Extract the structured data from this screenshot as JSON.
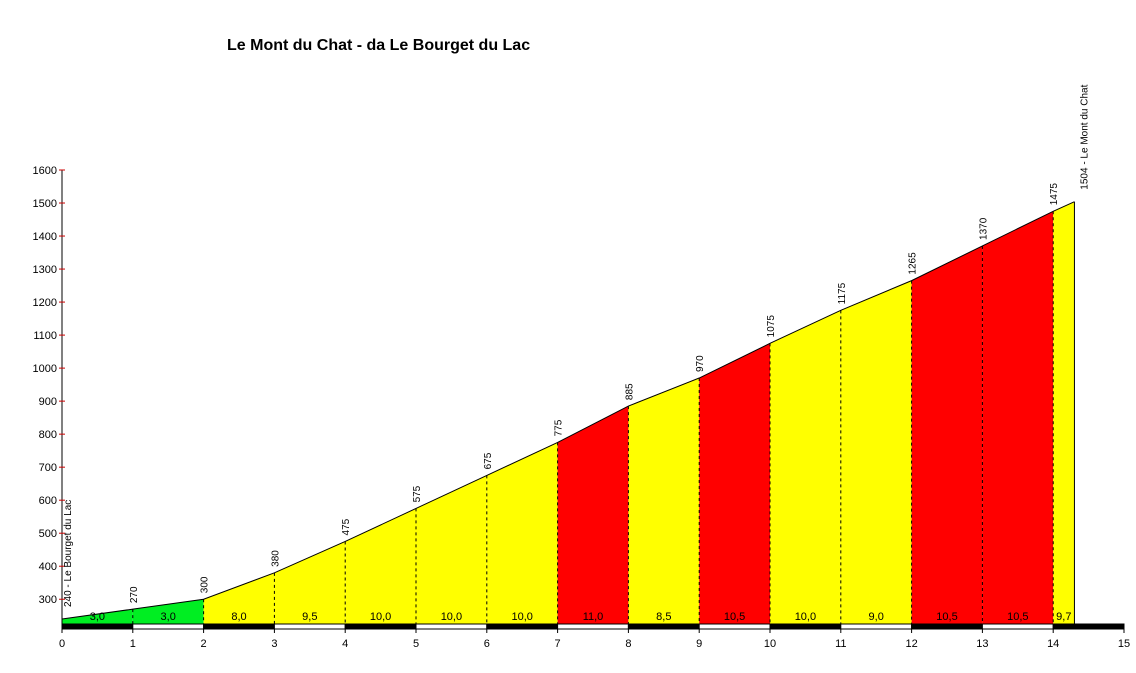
{
  "chart_data": {
    "type": "area",
    "title": "Le Mont du Chat - da Le Bourget du Lac",
    "xlabel": "",
    "ylabel": "",
    "xlim": [
      0,
      15
    ],
    "ylim": [
      225,
      1600
    ],
    "x_ticks": [
      0,
      1,
      2,
      3,
      4,
      5,
      6,
      7,
      8,
      9,
      10,
      11,
      12,
      13,
      14,
      15
    ],
    "y_ticks": [
      300,
      400,
      500,
      600,
      700,
      800,
      900,
      1000,
      1100,
      1200,
      1300,
      1400,
      1500,
      1600
    ],
    "grid": false,
    "points": [
      {
        "x": 0,
        "y": 240
      },
      {
        "x": 1,
        "y": 270
      },
      {
        "x": 2,
        "y": 300
      },
      {
        "x": 3,
        "y": 380
      },
      {
        "x": 4,
        "y": 475
      },
      {
        "x": 5,
        "y": 575
      },
      {
        "x": 6,
        "y": 675
      },
      {
        "x": 7,
        "y": 775
      },
      {
        "x": 8,
        "y": 885
      },
      {
        "x": 9,
        "y": 970
      },
      {
        "x": 10,
        "y": 1075
      },
      {
        "x": 11,
        "y": 1175
      },
      {
        "x": 12,
        "y": 1265
      },
      {
        "x": 13,
        "y": 1370
      },
      {
        "x": 14,
        "y": 1475
      },
      {
        "x": 14.3,
        "y": 1504
      }
    ],
    "elevation_labels": [
      "270",
      "300",
      "380",
      "475",
      "575",
      "675",
      "775",
      "885",
      "970",
      "1075",
      "1175",
      "1265",
      "1370",
      "1475"
    ],
    "segments": [
      {
        "from": 0,
        "to": 1,
        "gradient": "3,0",
        "color": "#00ee22"
      },
      {
        "from": 1,
        "to": 2,
        "gradient": "3,0",
        "color": "#00ee22"
      },
      {
        "from": 2,
        "to": 3,
        "gradient": "8,0",
        "color": "#ffff00"
      },
      {
        "from": 3,
        "to": 4,
        "gradient": "9,5",
        "color": "#ffff00"
      },
      {
        "from": 4,
        "to": 5,
        "gradient": "10,0",
        "color": "#ffff00"
      },
      {
        "from": 5,
        "to": 6,
        "gradient": "10,0",
        "color": "#ffff00"
      },
      {
        "from": 6,
        "to": 7,
        "gradient": "10,0",
        "color": "#ffff00"
      },
      {
        "from": 7,
        "to": 8,
        "gradient": "11,0",
        "color": "#ff0000"
      },
      {
        "from": 8,
        "to": 9,
        "gradient": "8,5",
        "color": "#ffff00"
      },
      {
        "from": 9,
        "to": 10,
        "gradient": "10,5",
        "color": "#ff0000"
      },
      {
        "from": 10,
        "to": 11,
        "gradient": "10,0",
        "color": "#ffff00"
      },
      {
        "from": 11,
        "to": 12,
        "gradient": "9,0",
        "color": "#ffff00"
      },
      {
        "from": 12,
        "to": 13,
        "gradient": "10,5",
        "color": "#ff0000"
      },
      {
        "from": 13,
        "to": 14,
        "gradient": "10,5",
        "color": "#ff0000"
      },
      {
        "from": 14,
        "to": 14.3,
        "gradient": "9,7",
        "color": "#ffff00"
      }
    ],
    "start_label": "240 - Le Bourget du Lac",
    "end_label": "1504 - Le Mont du Chat"
  }
}
